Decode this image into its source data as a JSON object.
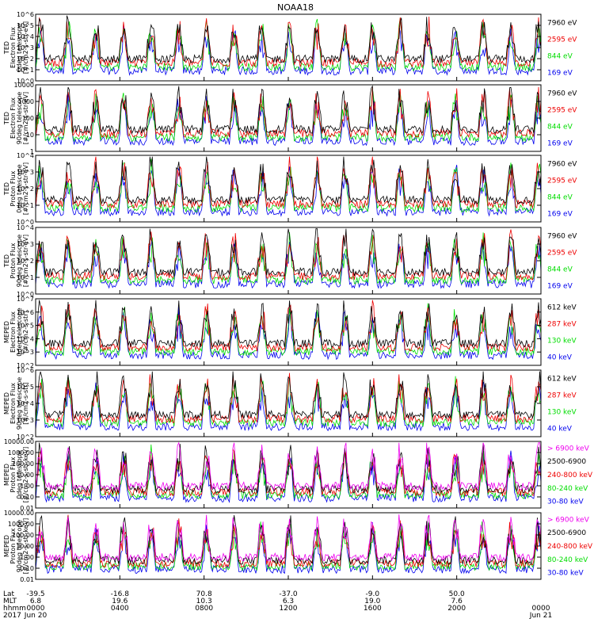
{
  "title": "NOAA18",
  "colors": {
    "black": "#000000",
    "red": "#ee0000",
    "green": "#00dd00",
    "blue": "#0000ee",
    "magenta": "#ee00ee"
  },
  "chart_data": [
    {
      "type": "line",
      "ylabel_lines": [
        "TED",
        "Electron Flux",
        "0deg telescope",
        "[#/cm2-s-str-eV]"
      ],
      "scale": "log",
      "ylim": [
        1,
        1000000
      ],
      "ytick_labels": [
        "10^0",
        "10^1",
        "10^2",
        "10^3",
        "10^4",
        "10^5",
        "10^6"
      ],
      "ytick_values": [
        1,
        10,
        100,
        1000,
        10000,
        100000,
        1000000
      ],
      "series": [
        {
          "name": "7960 eV",
          "color": "#000000"
        },
        {
          "name": "2595 eV",
          "color": "#ee0000"
        },
        {
          "name": "844 eV",
          "color": "#00dd00"
        },
        {
          "name": "169 eV",
          "color": "#0000ee"
        }
      ]
    },
    {
      "type": "line",
      "ylabel_lines": [
        "TED",
        "Electron Flux",
        "90deg telescope",
        "[#/cm2-s-str-eV]"
      ],
      "scale": "log",
      "ylim": [
        1,
        10000
      ],
      "ytick_labels": [
        "1",
        "10",
        "100",
        "1000",
        "10000"
      ],
      "ytick_values": [
        1,
        10,
        100,
        1000,
        10000
      ],
      "series": [
        {
          "name": "7960 eV",
          "color": "#000000"
        },
        {
          "name": "2595 eV",
          "color": "#ee0000"
        },
        {
          "name": "844 eV",
          "color": "#00dd00"
        },
        {
          "name": "169 eV",
          "color": "#0000ee"
        }
      ]
    },
    {
      "type": "line",
      "ylabel_lines": [
        "TED",
        "Proton Flux",
        "0deg telescope",
        "[#/cm2-s-str-eV]"
      ],
      "scale": "log",
      "ylim": [
        1,
        10000
      ],
      "ytick_labels": [
        "10^0",
        "10^1",
        "10^2",
        "10^3",
        "10^4"
      ],
      "ytick_values": [
        1,
        10,
        100,
        1000,
        10000
      ],
      "series": [
        {
          "name": "7960 eV",
          "color": "#000000"
        },
        {
          "name": "2595 eV",
          "color": "#ee0000"
        },
        {
          "name": "844 eV",
          "color": "#00dd00"
        },
        {
          "name": "169 eV",
          "color": "#0000ee"
        }
      ]
    },
    {
      "type": "line",
      "ylabel_lines": [
        "TED",
        "Proton Flux",
        "90deg telescope",
        "[#/cm2-s-str-eV]"
      ],
      "scale": "log",
      "ylim": [
        1,
        10000
      ],
      "ytick_labels": [
        "10^0",
        "10^1",
        "10^2",
        "10^3",
        "10^4"
      ],
      "ytick_values": [
        1,
        10,
        100,
        1000,
        10000
      ],
      "series": [
        {
          "name": "7960 eV",
          "color": "#000000"
        },
        {
          "name": "2595 eV",
          "color": "#ee0000"
        },
        {
          "name": "844 eV",
          "color": "#00dd00"
        },
        {
          "name": "169 eV",
          "color": "#0000ee"
        }
      ]
    },
    {
      "type": "line",
      "ylabel_lines": [
        "MEPED",
        "Electron Flux",
        "0deg telescope",
        "[#/cm2-s-str]"
      ],
      "scale": "log",
      "ylim": [
        100,
        10000000
      ],
      "ytick_labels": [
        "10^2",
        "10^3",
        "10^4",
        "10^5",
        "10^6",
        "10^7"
      ],
      "ytick_values": [
        100,
        1000,
        10000,
        100000,
        1000000,
        10000000
      ],
      "series": [
        {
          "name": "612 keV",
          "color": "#000000"
        },
        {
          "name": "287 keV",
          "color": "#ee0000"
        },
        {
          "name": "130 keV",
          "color": "#00dd00"
        },
        {
          "name": "40 keV",
          "color": "#0000ee"
        }
      ]
    },
    {
      "type": "line",
      "ylabel_lines": [
        "MEPED",
        "Electron Flux",
        "90deg telescope",
        "[#/cm2-s-str]"
      ],
      "scale": "log",
      "ylim": [
        100,
        1000000
      ],
      "ytick_labels": [
        "10^2",
        "10^3",
        "10^4",
        "10^5",
        "10^6"
      ],
      "ytick_values": [
        100,
        1000,
        10000,
        100000,
        1000000
      ],
      "series": [
        {
          "name": "612 keV",
          "color": "#000000"
        },
        {
          "name": "287 keV",
          "color": "#ee0000"
        },
        {
          "name": "130 keV",
          "color": "#00dd00"
        },
        {
          "name": "40 keV",
          "color": "#0000ee"
        }
      ]
    },
    {
      "type": "line",
      "ylabel_lines": [
        "MEPED",
        "Proton Flux",
        "0deg telescope",
        "[#/cm2-s-str-keV]"
      ],
      "scale": "log",
      "ylim": [
        0.01,
        10000
      ],
      "ytick_labels": [
        "0.01",
        "0.10",
        "1.00",
        "10.00",
        "100.00",
        "1000.00",
        "10000.00"
      ],
      "ytick_values": [
        0.01,
        0.1,
        1,
        10,
        100,
        1000,
        10000
      ],
      "series": [
        {
          "name": "> 6900 keV",
          "color": "#ee00ee"
        },
        {
          "name": "2500-6900",
          "color": "#000000"
        },
        {
          "name": "240-800 keV",
          "color": "#ee0000"
        },
        {
          "name": "80-240 keV",
          "color": "#00dd00"
        },
        {
          "name": "30-80 keV",
          "color": "#0000ee"
        }
      ]
    },
    {
      "type": "line",
      "ylabel_lines": [
        "MEPED",
        "Proton Flux",
        "90deg telescope",
        "[#/cm2-s-str-keV]"
      ],
      "scale": "log",
      "ylim": [
        0.01,
        10000
      ],
      "ytick_labels": [
        "0.01",
        "0.10",
        "1.00",
        "10.00",
        "100.00",
        "1000.00",
        "10000.00"
      ],
      "ytick_values": [
        0.01,
        0.1,
        1,
        10,
        100,
        1000,
        10000
      ],
      "series": [
        {
          "name": "> 6900 keV",
          "color": "#ee00ee"
        },
        {
          "name": "2500-6900",
          "color": "#000000"
        },
        {
          "name": "240-800 keV",
          "color": "#ee0000"
        },
        {
          "name": "80-240 keV",
          "color": "#00dd00"
        },
        {
          "name": "30-80 keV",
          "color": "#0000ee"
        }
      ]
    }
  ],
  "x_axis": {
    "row_labels": [
      "Lat",
      "MLT",
      "hhmm",
      "2017"
    ],
    "xlim_hours": [
      0,
      24
    ],
    "ticks": [
      {
        "hour": 0,
        "lat": "-39.5",
        "mlt": "6.8",
        "hhmm": "0000",
        "date": "Jun 20"
      },
      {
        "hour": 4,
        "lat": "-16.8",
        "mlt": "19.6",
        "hhmm": "0400",
        "date": ""
      },
      {
        "hour": 8,
        "lat": "70.8",
        "mlt": "10.3",
        "hhmm": "0800",
        "date": ""
      },
      {
        "hour": 12,
        "lat": "-37.0",
        "mlt": "6.3",
        "hhmm": "1200",
        "date": ""
      },
      {
        "hour": 16,
        "lat": "-9.0",
        "mlt": "19.0",
        "hhmm": "1600",
        "date": ""
      },
      {
        "hour": 20,
        "lat": "50.0",
        "mlt": "7.6",
        "hhmm": "2000",
        "date": ""
      },
      {
        "hour": 24,
        "lat": "",
        "mlt": "",
        "hhmm": "0000",
        "date": "Jun 21"
      }
    ]
  }
}
